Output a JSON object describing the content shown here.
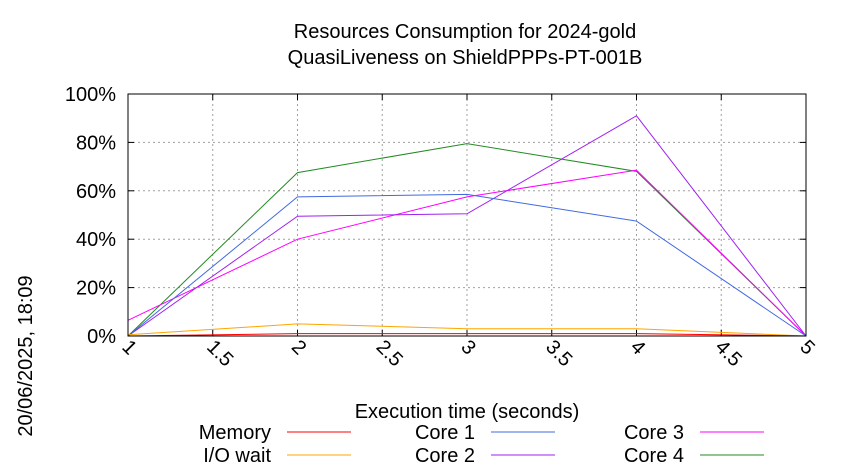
{
  "chart_data": {
    "type": "line",
    "title": [
      "Resources Consumption for 2024-gold",
      "QuasiLiveness on ShieldPPPs-PT-001B"
    ],
    "xlabel": "Execution time (seconds)",
    "ylabel": "",
    "side_label": "20/06/2025, 18:09",
    "xlim": [
      1,
      5
    ],
    "ylim": [
      0,
      100
    ],
    "x_ticks": [
      {
        "value": 1,
        "label": "1"
      },
      {
        "value": 1.5,
        "label": "1.5"
      },
      {
        "value": 2,
        "label": "2"
      },
      {
        "value": 2.5,
        "label": "2.5"
      },
      {
        "value": 3,
        "label": "3"
      },
      {
        "value": 3.5,
        "label": "3.5"
      },
      {
        "value": 4,
        "label": "4"
      },
      {
        "value": 4.5,
        "label": "4.5"
      },
      {
        "value": 5,
        "label": "5"
      }
    ],
    "y_ticks": [
      {
        "value": 0,
        "label": "0%"
      },
      {
        "value": 20,
        "label": "20%"
      },
      {
        "value": 40,
        "label": "40%"
      },
      {
        "value": 60,
        "label": "60%"
      },
      {
        "value": 80,
        "label": "80%"
      },
      {
        "value": 100,
        "label": "100%"
      }
    ],
    "grid": true,
    "legend_position": "bottom",
    "series": [
      {
        "name": "Memory",
        "color": "#ff0000",
        "x": [
          1,
          2,
          3,
          4,
          5
        ],
        "y": [
          0,
          1,
          1,
          1,
          0
        ]
      },
      {
        "name": "I/O wait",
        "color": "#ffa500",
        "x": [
          1,
          2,
          3,
          4,
          5
        ],
        "y": [
          0.5,
          5,
          3,
          3,
          0
        ]
      },
      {
        "name": "Core 1",
        "color": "#4169e1",
        "x": [
          1,
          2,
          3,
          4,
          5
        ],
        "y": [
          0,
          57.5,
          58.5,
          47.5,
          0
        ]
      },
      {
        "name": "Core 2",
        "color": "#a020f0",
        "x": [
          1,
          2,
          3,
          4,
          5
        ],
        "y": [
          0,
          49.5,
          50.5,
          91,
          0
        ]
      },
      {
        "name": "Core 3",
        "color": "#ff00ff",
        "x": [
          1,
          2,
          3,
          4,
          5
        ],
        "y": [
          6.5,
          40,
          57.5,
          68.5,
          0
        ]
      },
      {
        "name": "Core 4",
        "color": "#228b22",
        "x": [
          1,
          2,
          3,
          4,
          5
        ],
        "y": [
          0,
          67.5,
          79.5,
          68,
          0
        ]
      }
    ]
  }
}
